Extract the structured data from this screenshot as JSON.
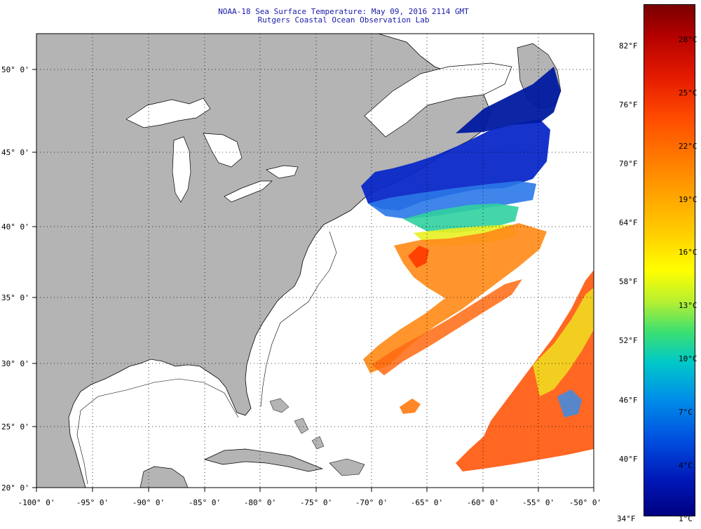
{
  "title_line1": "NOAA-18 Sea Surface Temperature:  May 09, 2016 2114 GMT",
  "title_line2": "Rutgers Coastal Ocean Observation Lab",
  "colors": {
    "land": "#b4b4b4",
    "water": "#ffffff",
    "grid": "#000000",
    "title_text": "#1a1aa8"
  },
  "map_extent": {
    "lon_min": -100,
    "lon_max": -50,
    "lat_min": 20,
    "lat_max": 52.5
  },
  "lat_labels": [
    "50° 0'",
    "45° 0'",
    "40° 0'",
    "35° 0'",
    "30° 0'",
    "25° 0'",
    "20° 0'"
  ],
  "lat_values": [
    50,
    45,
    40,
    35,
    30,
    25,
    20
  ],
  "lon_labels": [
    "-100° 0'",
    "-95° 0'",
    "-90° 0'",
    "-85° 0'",
    "-80° 0'",
    "-75° 0'",
    "-70° 0'",
    "-65° 0'",
    "-60° 0'",
    "-55° 0'",
    "-50° 0'"
  ],
  "lon_values": [
    -100,
    -95,
    -90,
    -85,
    -80,
    -75,
    -70,
    -65,
    -60,
    -55,
    -50
  ],
  "colorbar": {
    "fahrenheit": [
      "82°F",
      "76°F",
      "70°F",
      "64°F",
      "58°F",
      "52°F",
      "46°F",
      "40°F",
      "34°F"
    ],
    "celsius": [
      "28°C",
      "25°C",
      "22°C",
      "19°C",
      "16°C",
      "13°C",
      "10°C",
      "7°C",
      "4°C",
      "1°C"
    ]
  }
}
